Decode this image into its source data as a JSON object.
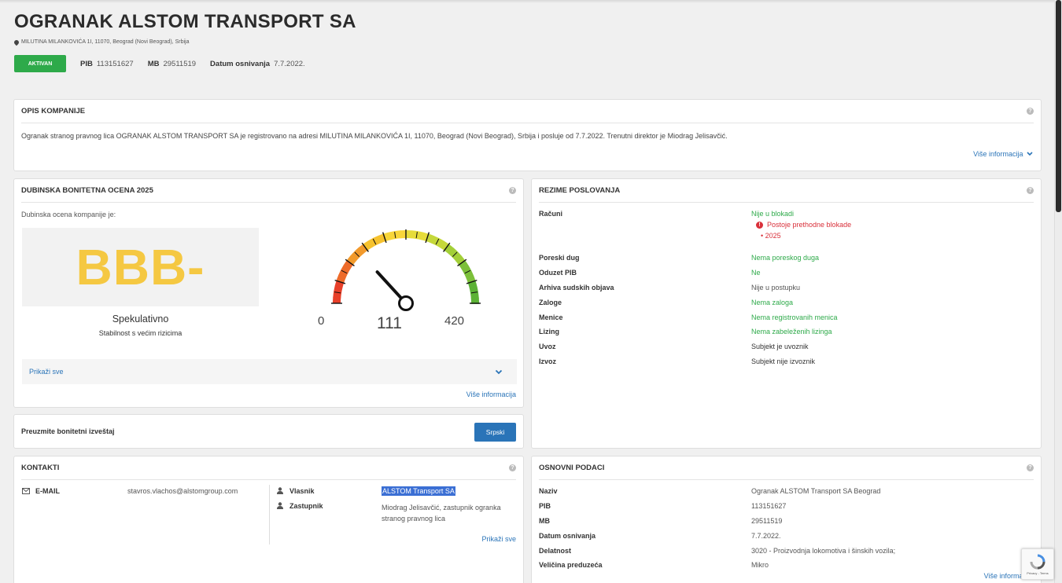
{
  "company": {
    "title": "OGRANAK ALSTOM TRANSPORT SA",
    "address": "MILUTINA MILANKOVIĆA 1I, 11070, Beograd (Novi Beograd), Srbija",
    "status": "AKTIVAN",
    "pib_label": "PIB",
    "pib": "113151627",
    "mb_label": "MB",
    "mb": "29511519",
    "founded_label": "Datum osnivanja",
    "founded": "7.7.2022."
  },
  "opis": {
    "title": "OPIS KOMPANIJE",
    "text": "Ogranak stranog pravnog lica OGRANAK ALSTOM TRANSPORT SA je registrovano na adresi MILUTINA MILANKOVIĆA 1I, 11070, Beograd (Novi Beograd), Srbija i posluje od 7.7.2022. Trenutni direktor je Miodrag Jelisavčić.",
    "more": "Više informacija"
  },
  "ocena": {
    "title": "DUBINSKA BONITETNA OCENA 2025",
    "intro": "Dubinska ocena kompanije je:",
    "grade": "BBB-",
    "grade_color": "#f5c842",
    "class": "Spekulativno",
    "desc": "Stabilnost s većim rizicima",
    "gauge_min": "0",
    "gauge_max": "420",
    "gauge_value": "111",
    "show_all": "Prikaži sve",
    "more": "Više informacija"
  },
  "report": {
    "label": "Preuzmite bonitetni izveštaj",
    "button": "Srpski"
  },
  "rezime": {
    "title": "REZIME POSLOVANJA",
    "racuni_label": "Računi",
    "racuni_value": "Nije u blokadi",
    "racuni_warning": "Postoje prethodne blokade",
    "racuni_year": "2025",
    "rows": [
      {
        "k": "Poreski dug",
        "v": "Nema poreskog duga",
        "c": "green"
      },
      {
        "k": "Oduzet PIB",
        "v": "Ne",
        "c": "green"
      },
      {
        "k": "Arhiva sudskih objava",
        "v": "Nije u postupku",
        "c": "grey"
      },
      {
        "k": "Zaloge",
        "v": "Nema zaloga",
        "c": "green"
      },
      {
        "k": "Menice",
        "v": "Nema registrovanih menica",
        "c": "green"
      },
      {
        "k": "Lizing",
        "v": "Nema zabeleženih lizinga",
        "c": "green"
      },
      {
        "k": "Uvoz",
        "v": "Subjekt je uvoznik",
        "c": "dark"
      },
      {
        "k": "Izvoz",
        "v": "Subjekt nije izvoznik",
        "c": "dark"
      }
    ]
  },
  "kontakti": {
    "title": "KONTAKTI",
    "email_label": "E-MAIL",
    "email": "stavros.vlachos@alstomgroup.com",
    "vlasnik_label": "Vlasnik",
    "vlasnik": "ALSTOM Transport SA",
    "zastupnik_label": "Zastupnik",
    "zastupnik": "Miodrag Jelisavčić, zastupnik ogranka stranog pravnog lica",
    "show_all": "Prikaži sve"
  },
  "osnovni": {
    "title": "OSNOVNI PODACI",
    "rows": [
      {
        "k": "Naziv",
        "v": "Ogranak ALSTOM Transport SA Beograd"
      },
      {
        "k": "PIB",
        "v": "113151627"
      },
      {
        "k": "MB",
        "v": "29511519"
      },
      {
        "k": "Datum osnivanja",
        "v": "7.7.2022."
      },
      {
        "k": "Delatnost",
        "v": "3020 - Proizvodnja lokomotiva i šinskih vozila;"
      },
      {
        "k": "Veličina preduzeća",
        "v": "Mikro"
      }
    ],
    "more": "Više informacija"
  },
  "recaptcha": {
    "text": "Privacy - Terms"
  }
}
